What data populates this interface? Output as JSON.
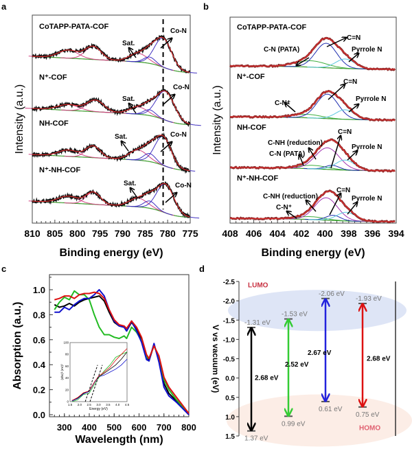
{
  "panels": {
    "a": "a",
    "b": "b",
    "c": "c",
    "d": "d"
  },
  "chart_data": [
    {
      "id": "a",
      "type": "line",
      "xlabel": "Binding energy (eV)",
      "ylabel": "Intensity (a.u.)",
      "xlim": [
        810,
        775
      ],
      "xticks": [
        "810",
        "805",
        "800",
        "795",
        "790",
        "785",
        "780",
        "775"
      ],
      "reference_line_eV": 781,
      "series": [
        {
          "name": "CoTAPP-PATA-COF",
          "sat_label": "Sat.",
          "peak_label": "Co-N",
          "peaks": [
            {
              "center": 802,
              "amp": 0.28,
              "width": 2.2
            },
            {
              "center": 796.5,
              "amp": 0.45,
              "width": 1.8
            },
            {
              "center": 786.5,
              "amp": 0.3,
              "width": 2.0
            },
            {
              "center": 784,
              "amp": 0.22,
              "width": 1.3
            },
            {
              "center": 781,
              "amp": 1.0,
              "width": 1.9
            }
          ]
        },
        {
          "name": "N⁺-COF",
          "sat_label": "Sat.",
          "peak_label": "Co-N",
          "peaks": [
            {
              "center": 802,
              "amp": 0.2,
              "width": 2.4
            },
            {
              "center": 796,
              "amp": 0.4,
              "width": 1.9
            },
            {
              "center": 786.5,
              "amp": 0.25,
              "width": 2.0
            },
            {
              "center": 784,
              "amp": 0.2,
              "width": 1.3
            },
            {
              "center": 780.5,
              "amp": 1.0,
              "width": 2.0
            }
          ]
        },
        {
          "name": "NH-COF",
          "sat_label": "Sat.",
          "peak_label": "Co-N",
          "peaks": [
            {
              "center": 802,
              "amp": 0.22,
              "width": 2.2
            },
            {
              "center": 796.5,
              "amp": 0.4,
              "width": 1.6
            },
            {
              "center": 786.5,
              "amp": 0.35,
              "width": 2.0
            },
            {
              "center": 784,
              "amp": 0.28,
              "width": 1.3
            },
            {
              "center": 781,
              "amp": 1.0,
              "width": 1.8
            }
          ]
        },
        {
          "name": "N⁺-NH-COF",
          "sat_label": "Sat.",
          "peak_label": "Co-N",
          "peaks": [
            {
              "center": 802,
              "amp": 0.24,
              "width": 2.2
            },
            {
              "center": 796.5,
              "amp": 0.42,
              "width": 1.6
            },
            {
              "center": 786.5,
              "amp": 0.3,
              "width": 2.0
            },
            {
              "center": 784,
              "amp": 0.25,
              "width": 1.3
            },
            {
              "center": 780.5,
              "amp": 1.0,
              "width": 1.9
            }
          ]
        }
      ]
    },
    {
      "id": "b",
      "type": "line",
      "xlabel": "Binding energy (eV)",
      "ylabel": "Intensity (a.u.)",
      "xlim": [
        408,
        394
      ],
      "xticks": [
        "408",
        "406",
        "404",
        "402",
        "400",
        "398",
        "396",
        "394"
      ],
      "series": [
        {
          "name": "CoTAPP-PATA-COF",
          "labels": [
            "C-N (PATA)",
            "C=N",
            "Pyrrole N"
          ],
          "components": [
            {
              "label": "C-N (PATA)",
              "color": "#3fae3f",
              "center": 401.2,
              "amp": 0.22,
              "width": 1.3
            },
            {
              "label": "C=N",
              "color": "#2030b0",
              "center": 399.9,
              "amp": 0.85,
              "width": 0.9
            },
            {
              "label": "Pyrrole N",
              "color": "#5cc8e0",
              "center": 398.3,
              "amp": 0.33,
              "width": 0.8
            }
          ]
        },
        {
          "name": "N⁺-COF",
          "labels": [
            "C-N⁺",
            "C=N",
            "Pyrrole N"
          ],
          "components": [
            {
              "label": "C-N⁺",
              "color": "#3fae3f",
              "center": 401.5,
              "amp": 0.12,
              "width": 1.2
            },
            {
              "label": "C=N",
              "color": "#2030b0",
              "center": 399.8,
              "amp": 0.85,
              "width": 0.9
            },
            {
              "label": "Pyrrole N",
              "color": "#5cc8e0",
              "center": 398.3,
              "amp": 0.33,
              "width": 0.8
            }
          ]
        },
        {
          "name": "NH-COF",
          "labels": [
            "C-NH (reduction)",
            "C-N (PATA)",
            "C=N",
            "Pyrrole N"
          ],
          "components": [
            {
              "label": "C-N (PATA)",
              "color": "#3fae3f",
              "center": 401.0,
              "amp": 0.12,
              "width": 1.2
            },
            {
              "label": "C-NH (reduction)",
              "color": "#a030b0",
              "center": 399.8,
              "amp": 0.75,
              "width": 1.0
            },
            {
              "label": "C=N",
              "color": "#2030b0",
              "center": 399.4,
              "amp": 0.15,
              "width": 0.6
            },
            {
              "label": "Pyrrole N",
              "color": "#5cc8e0",
              "center": 398.3,
              "amp": 0.35,
              "width": 0.8
            }
          ]
        },
        {
          "name": "N⁺-NH-COF",
          "labels": [
            "C-NH (reduction)",
            "C-N⁺",
            "C=N",
            "Pyrrole N"
          ],
          "components": [
            {
              "label": "C-N⁺",
              "color": "#3fae3f",
              "center": 401.2,
              "amp": 0.1,
              "width": 1.2
            },
            {
              "label": "C-NH (reduction)",
              "color": "#a030b0",
              "center": 399.9,
              "amp": 0.78,
              "width": 0.95
            },
            {
              "label": "C=N",
              "color": "#2030b0",
              "center": 399.3,
              "amp": 0.18,
              "width": 0.6
            },
            {
              "label": "Pyrrole N",
              "color": "#5cc8e0",
              "center": 398.2,
              "amp": 0.3,
              "width": 0.8
            }
          ]
        }
      ]
    },
    {
      "id": "c",
      "type": "line",
      "xlabel": "Wavelength (nm)",
      "ylabel": "Absorption (a.u.)",
      "xlim": [
        240,
        800
      ],
      "ylim": [
        0,
        1.1
      ],
      "xticks": [
        "300",
        "400",
        "500",
        "600",
        "700",
        "800"
      ],
      "yticks": [
        "0.0",
        "0.2",
        "0.4",
        "0.6",
        "0.8",
        "1.0"
      ],
      "x": [
        260,
        280,
        300,
        320,
        340,
        360,
        380,
        400,
        420,
        440,
        460,
        480,
        500,
        520,
        540,
        550,
        570,
        590,
        610,
        630,
        640,
        660,
        680,
        700,
        720,
        750,
        800
      ],
      "series": [
        {
          "color": "#000000",
          "values": [
            0.88,
            0.86,
            0.87,
            0.89,
            0.87,
            0.9,
            0.92,
            0.93,
            0.94,
            0.95,
            0.91,
            0.82,
            0.74,
            0.71,
            0.7,
            0.67,
            0.74,
            0.68,
            0.6,
            0.47,
            0.43,
            0.56,
            0.44,
            0.25,
            0.17,
            0.11,
            0.0
          ]
        },
        {
          "color": "#22bb22",
          "values": [
            0.84,
            0.9,
            0.94,
            0.92,
            0.99,
            0.96,
            0.96,
            0.92,
            0.8,
            0.7,
            0.64,
            0.64,
            0.62,
            0.61,
            0.63,
            0.61,
            0.7,
            0.66,
            0.59,
            0.46,
            0.45,
            0.55,
            0.46,
            0.28,
            0.2,
            0.12,
            0.01
          ]
        },
        {
          "color": "#1010cc",
          "values": [
            0.82,
            0.82,
            0.86,
            0.84,
            0.88,
            0.91,
            0.93,
            0.93,
            0.96,
            1.0,
            0.95,
            0.84,
            0.75,
            0.71,
            0.7,
            0.67,
            0.75,
            0.67,
            0.58,
            0.44,
            0.43,
            0.57,
            0.42,
            0.22,
            0.15,
            0.1,
            0.0
          ]
        },
        {
          "color": "#dd1111",
          "values": [
            0.92,
            0.93,
            0.95,
            0.95,
            0.93,
            0.96,
            0.97,
            0.97,
            0.98,
            0.97,
            0.93,
            0.84,
            0.76,
            0.72,
            0.71,
            0.69,
            0.75,
            0.7,
            0.62,
            0.48,
            0.45,
            0.55,
            0.47,
            0.3,
            0.22,
            0.14,
            0.01
          ]
        }
      ],
      "inset": {
        "type": "line",
        "xlabel": "Energy (eV)",
        "ylabel": "(αhν)² (eV)²",
        "xlim": [
          1.5,
          4.5
        ],
        "ylim": [
          0,
          100
        ],
        "xticks": [
          "1.5",
          "2.0",
          "2.5",
          "3.0",
          "3.5",
          "4.0",
          "4.5"
        ],
        "yticks": [
          "0",
          "20",
          "40",
          "60",
          "80",
          "100"
        ],
        "x": [
          1.6,
          1.9,
          2.2,
          2.5,
          2.8,
          3.0,
          3.3,
          3.6,
          3.9,
          4.2,
          4.5
        ],
        "series": [
          {
            "color": "#000000",
            "values": [
              2,
              6,
              14,
              18,
              34,
              42,
              48,
              55,
              62,
              72,
              84
            ]
          },
          {
            "color": "#22bb22",
            "values": [
              0,
              3,
              12,
              14,
              30,
              40,
              52,
              62,
              75,
              80,
              84
            ]
          },
          {
            "color": "#1010cc",
            "values": [
              1,
              5,
              13,
              17,
              33,
              42,
              45,
              50,
              55,
              62,
              72
            ]
          },
          {
            "color": "#dd1111",
            "values": [
              2,
              7,
              15,
              18,
              34,
              43,
              50,
              58,
              70,
              80,
              90
            ]
          }
        ],
        "tangent_intercepts_eV": [
          2.3,
          2.55
        ]
      }
    },
    {
      "id": "d",
      "type": "bar",
      "ylabel": "V vs vacuum (eV)",
      "ylim": [
        -2.5,
        1.5
      ],
      "yticks": [
        "-2.5",
        "-2.0",
        "-1.5",
        "-1.0",
        "-0.5",
        "0.0",
        "0.5",
        "1.0",
        "1.5"
      ],
      "lumo_label": "LUMO",
      "homo_label": "HOMO",
      "lumo_color": "#c8d4f0",
      "homo_color": "#fbe6dc",
      "series": [
        {
          "color": "#000000",
          "lumo": -1.31,
          "homo": 1.37,
          "gap": 2.68,
          "lumo_text": "-1.31 eV",
          "homo_text": "1.37 eV",
          "gap_text": "2.68 eV"
        },
        {
          "color": "#33cc33",
          "lumo": -1.53,
          "homo": 0.99,
          "gap": 2.52,
          "lumo_text": "-1.53 eV",
          "homo_text": "0.99 eV",
          "gap_text": "2.52 eV"
        },
        {
          "color": "#2222dd",
          "lumo": -2.06,
          "homo": 0.61,
          "gap": 2.67,
          "lumo_text": "-2.06 eV",
          "homo_text": "0.61 eV",
          "gap_text": "2.67 eV"
        },
        {
          "color": "#dd1111",
          "lumo": -1.93,
          "homo": 0.75,
          "gap": 2.68,
          "lumo_text": "-1.93 eV",
          "homo_text": "0.75 eV",
          "gap_text": "2.68 eV"
        }
      ]
    }
  ]
}
